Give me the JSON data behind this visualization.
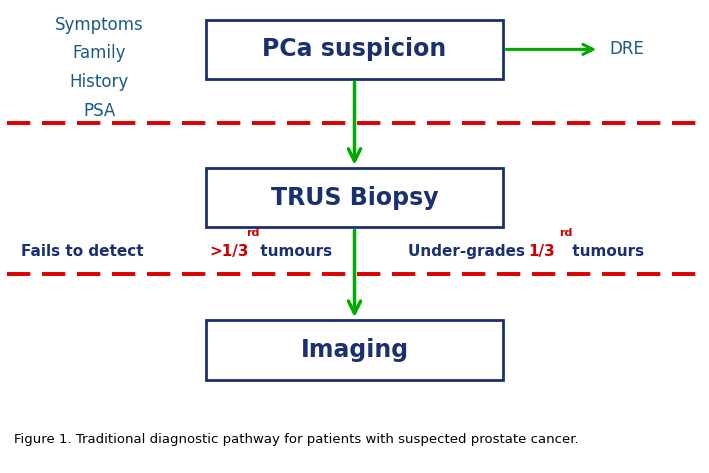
{
  "bg_color": "#ffffff",
  "caption_bg": "#d8d8d8",
  "box_edgecolor": "#1a3070",
  "box_facecolor": "#ffffff",
  "box_textcolor": "#1a3070",
  "arrow_color": "#00aa00",
  "dashed_line_color": "#dd0000",
  "left_text_color": "#1a5a8a",
  "highlight_color": "#cc0000",
  "dre_color": "#1a5a8a",
  "box1_label": "PCa suspicion",
  "box2_label": "TRUS Biopsy",
  "box3_label": "Imaging",
  "left_labels": [
    "Symptoms",
    "Family",
    "History",
    "PSA"
  ],
  "dre_label": "DRE",
  "caption": "Figure 1. Traditional diagnostic pathway for patients with suspected prostate cancer.",
  "figsize": [
    7.09,
    4.73
  ],
  "dpi": 100
}
